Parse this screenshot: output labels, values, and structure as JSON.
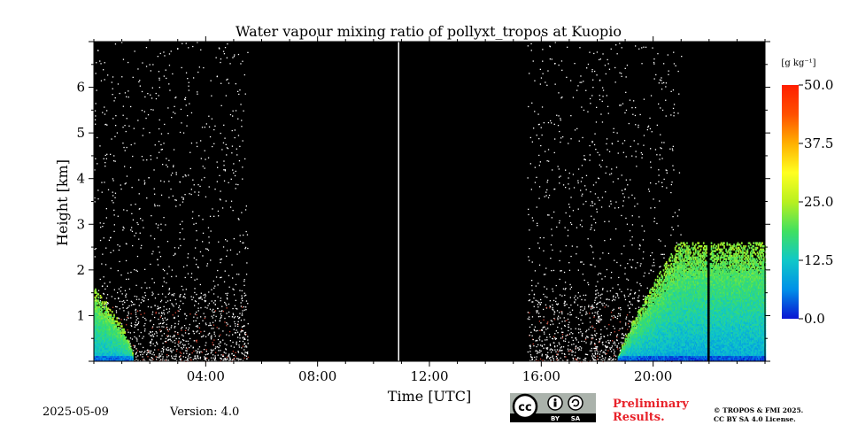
{
  "chart_data": {
    "type": "heatmap",
    "title": "Water vapour mixing ratio of pollyxt_tropos at Kuopio",
    "xlabel": "Time [UTC]",
    "ylabel": "Height [km]",
    "xlim": [
      0,
      24
    ],
    "ylim": [
      0,
      7
    ],
    "x_ticks": [
      4,
      8,
      12,
      16,
      20
    ],
    "x_tick_labels": [
      "04:00",
      "08:00",
      "12:00",
      "16:00",
      "20:00"
    ],
    "y_ticks": [
      1,
      2,
      3,
      4,
      5,
      6
    ],
    "y_tick_labels": [
      "1",
      "2",
      "3",
      "4",
      "5",
      "6"
    ],
    "colorbar": {
      "label": "[g kg⁻¹]",
      "ticks": [
        0.0,
        12.5,
        25.0,
        37.5,
        50.0
      ],
      "tick_labels": [
        "0.0",
        "12.5",
        "25.0",
        "37.5",
        "50.0"
      ],
      "range": [
        0,
        50
      ],
      "colors": [
        "#0a14d2",
        "#0090e8",
        "#10c8c8",
        "#40e060",
        "#b8f020",
        "#ffff20",
        "#ffb000",
        "#ff5000",
        "#ff1e00"
      ]
    },
    "background_color": "#000000",
    "data_gaps_utc": [
      [
        5.5,
        15.5
      ]
    ],
    "marker_line_utc": 10.9,
    "low_level_moisture_regions": [
      {
        "t_start": 0.0,
        "t_end": 1.4,
        "max_height_km": 1.6,
        "value_gkg": 10
      },
      {
        "t_start": 18.7,
        "t_end": 24.0,
        "max_height_km": 2.6,
        "value_gkg": 9
      }
    ],
    "noise_regions": [
      {
        "t_start": 0.0,
        "t_end": 5.5
      },
      {
        "t_start": 15.5,
        "t_end": 21.0
      }
    ],
    "vertical_gap_utc": 21.95
  },
  "footer": {
    "date": "2025-05-09",
    "version": "Version: 4.0",
    "preliminary": "Preliminary",
    "results": "Results.",
    "copyright": "© TROPOS & FMI 2025.",
    "license": "CC BY SA 4.0 License.",
    "cc_badge": "cc",
    "by_badge": "BY",
    "sa_badge": "SA"
  }
}
